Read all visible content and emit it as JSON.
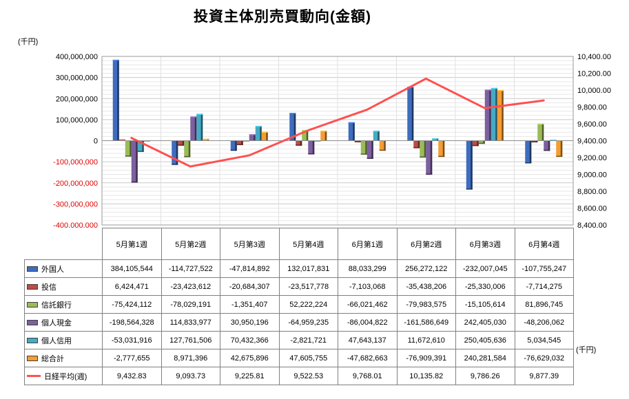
{
  "title": "投資主体別売買動向(金額)",
  "axes": {
    "left_unit": "(千円)",
    "right_unit": "(千円)"
  },
  "chart_data": {
    "type": "bar",
    "subtype": "bar-with-line-overlay",
    "grid": true,
    "legend_position": "table-left",
    "categories": [
      "5月第1週",
      "5月第2週",
      "5月第3週",
      "5月第4週",
      "6月第1週",
      "6月第2週",
      "6月第3週",
      "6月第4週"
    ],
    "left_axis": {
      "min": -400000000,
      "max": 400000000,
      "major": 100000000,
      "minor": 20000000
    },
    "right_axis": {
      "min": 8400,
      "max": 10400,
      "major": 200
    },
    "series": [
      {
        "name": "外国人",
        "color": "#3E6DBF",
        "values": [
          384105544,
          -114727522,
          -47814892,
          132017831,
          88033299,
          256272122,
          -232007045,
          -107755247
        ]
      },
      {
        "name": "投信",
        "color": "#BE4B48",
        "values": [
          6424471,
          -23423612,
          -20684307,
          -23517778,
          -7103068,
          -35438206,
          -25330006,
          -7714275
        ]
      },
      {
        "name": "信託銀行",
        "color": "#9BBB59",
        "values": [
          -75424112,
          -78029191,
          -1351407,
          52222224,
          -66021462,
          -79983575,
          -15105614,
          81896745
        ]
      },
      {
        "name": "個人現金",
        "color": "#7D60A0",
        "values": [
          -198564328,
          114833977,
          30950196,
          -64959235,
          -86004822,
          -161586649,
          242405030,
          -48206062
        ]
      },
      {
        "name": "個人信用",
        "color": "#46AAC5",
        "values": [
          -53031916,
          127761506,
          70432366,
          -2821721,
          47643137,
          11672610,
          250405636,
          5034545
        ]
      },
      {
        "name": "総合計",
        "color": "#F59D33",
        "values": [
          -2777655,
          8971396,
          42675896,
          47605755,
          -47682663,
          -76909391,
          240281584,
          -76629032
        ]
      }
    ],
    "line_series": {
      "name": "日経平均(週)",
      "color": "#FF5050",
      "axis": "right",
      "values": [
        9432.83,
        9093.73,
        9225.81,
        9522.53,
        9768.01,
        10135.82,
        9786.26,
        9877.39
      ]
    }
  }
}
